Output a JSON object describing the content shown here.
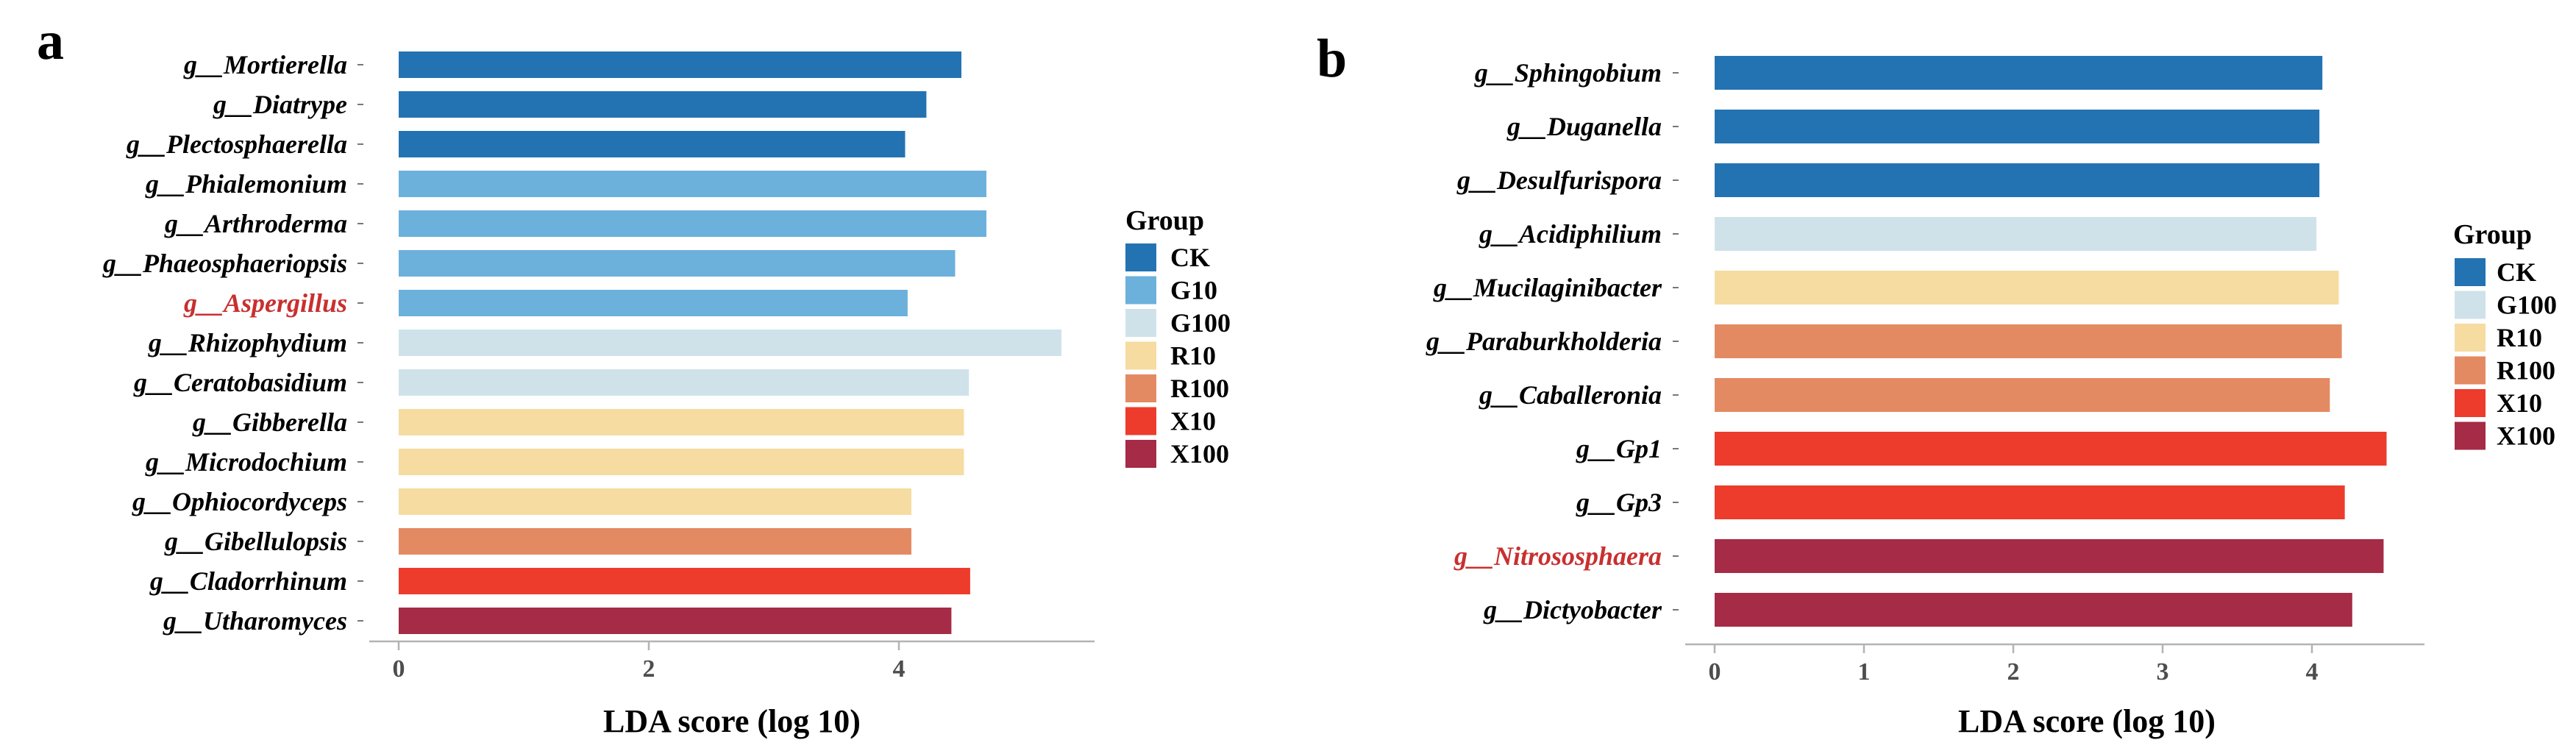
{
  "chart_data": [
    {
      "type": "bar",
      "orientation": "horizontal",
      "panel_label": "a",
      "xlabel": "LDA score (log 10)",
      "xlim": [
        0,
        5.75
      ],
      "xticks": [
        "0",
        "2",
        "4"
      ],
      "legend_title": "Group",
      "legend": [
        {
          "name": "CK",
          "color": "#2373b3"
        },
        {
          "name": "G10",
          "color": "#6cb0dc"
        },
        {
          "name": "G100",
          "color": "#cfe2ea"
        },
        {
          "name": "R10",
          "color": "#f6dca1"
        },
        {
          "name": "R100",
          "color": "#e48a63"
        },
        {
          "name": "X10",
          "color": "#ed3b2c"
        },
        {
          "name": "X100",
          "color": "#a52b46"
        }
      ],
      "categories": [
        {
          "label": "g__Mortierella",
          "value": 4.5,
          "group": "CK",
          "highlight": false
        },
        {
          "label": "g__Diatrype",
          "value": 4.22,
          "group": "CK",
          "highlight": false
        },
        {
          "label": "g__Plectosphaerella",
          "value": 4.05,
          "group": "CK",
          "highlight": false
        },
        {
          "label": "g__Phialemonium",
          "value": 4.7,
          "group": "G10",
          "highlight": false
        },
        {
          "label": "g__Arthroderma",
          "value": 4.7,
          "group": "G10",
          "highlight": false
        },
        {
          "label": "g__Phaeosphaeriopsis",
          "value": 4.45,
          "group": "G10",
          "highlight": false
        },
        {
          "label": "g__Aspergillus",
          "value": 4.07,
          "group": "G10",
          "highlight": true
        },
        {
          "label": "g__Rhizophydium",
          "value": 5.3,
          "group": "G100",
          "highlight": false
        },
        {
          "label": "g__Ceratobasidium",
          "value": 4.56,
          "group": "G100",
          "highlight": false
        },
        {
          "label": "g__Gibberella",
          "value": 4.52,
          "group": "R10",
          "highlight": false
        },
        {
          "label": "g__Microdochium",
          "value": 4.52,
          "group": "R10",
          "highlight": false
        },
        {
          "label": "g__Ophiocordyceps",
          "value": 4.1,
          "group": "R10",
          "highlight": false
        },
        {
          "label": "g__Gibellulopsis",
          "value": 4.1,
          "group": "R100",
          "highlight": false
        },
        {
          "label": "g__Cladorrhinum",
          "value": 4.57,
          "group": "X10",
          "highlight": false
        },
        {
          "label": "g__Utharomyces",
          "value": 4.42,
          "group": "X100",
          "highlight": false
        }
      ]
    },
    {
      "type": "bar",
      "orientation": "horizontal",
      "panel_label": "b",
      "xlabel": "LDA score (log 10)",
      "xlim": [
        0,
        4.75
      ],
      "xticks": [
        "0",
        "1",
        "2",
        "3",
        "4"
      ],
      "legend_title": "Group",
      "legend": [
        {
          "name": "CK",
          "color": "#2373b3"
        },
        {
          "name": "G100",
          "color": "#cfe2ea"
        },
        {
          "name": "R10",
          "color": "#f6dca1"
        },
        {
          "name": "R100",
          "color": "#e48a63"
        },
        {
          "name": "X10",
          "color": "#ed3b2c"
        },
        {
          "name": "X100",
          "color": "#a52b46"
        }
      ],
      "categories": [
        {
          "label": "g__Sphingobium",
          "value": 4.07,
          "group": "CK",
          "highlight": false
        },
        {
          "label": "g__Duganella",
          "value": 4.05,
          "group": "CK",
          "highlight": false
        },
        {
          "label": "g__Desulfurispora",
          "value": 4.05,
          "group": "CK",
          "highlight": false
        },
        {
          "label": "g__Acidiphilium",
          "value": 4.03,
          "group": "G100",
          "highlight": false
        },
        {
          "label": "g__Mucilaginibacter",
          "value": 4.18,
          "group": "R10",
          "highlight": false
        },
        {
          "label": "g__Paraburkholderia",
          "value": 4.2,
          "group": "R100",
          "highlight": false
        },
        {
          "label": "g__Caballeronia",
          "value": 4.12,
          "group": "R100",
          "highlight": false
        },
        {
          "label": "g__Gp1",
          "value": 4.5,
          "group": "X10",
          "highlight": false
        },
        {
          "label": "g__Gp3",
          "value": 4.22,
          "group": "X10",
          "highlight": false
        },
        {
          "label": "g__Nitrososphaera",
          "value": 4.48,
          "group": "X100",
          "highlight": true
        },
        {
          "label": "g__Dictyobacter",
          "value": 4.27,
          "group": "X100",
          "highlight": false
        }
      ]
    }
  ],
  "colors": {
    "label_default": "#000000",
    "label_highlight": "#c8302f",
    "axis": "#b3b3b3"
  }
}
